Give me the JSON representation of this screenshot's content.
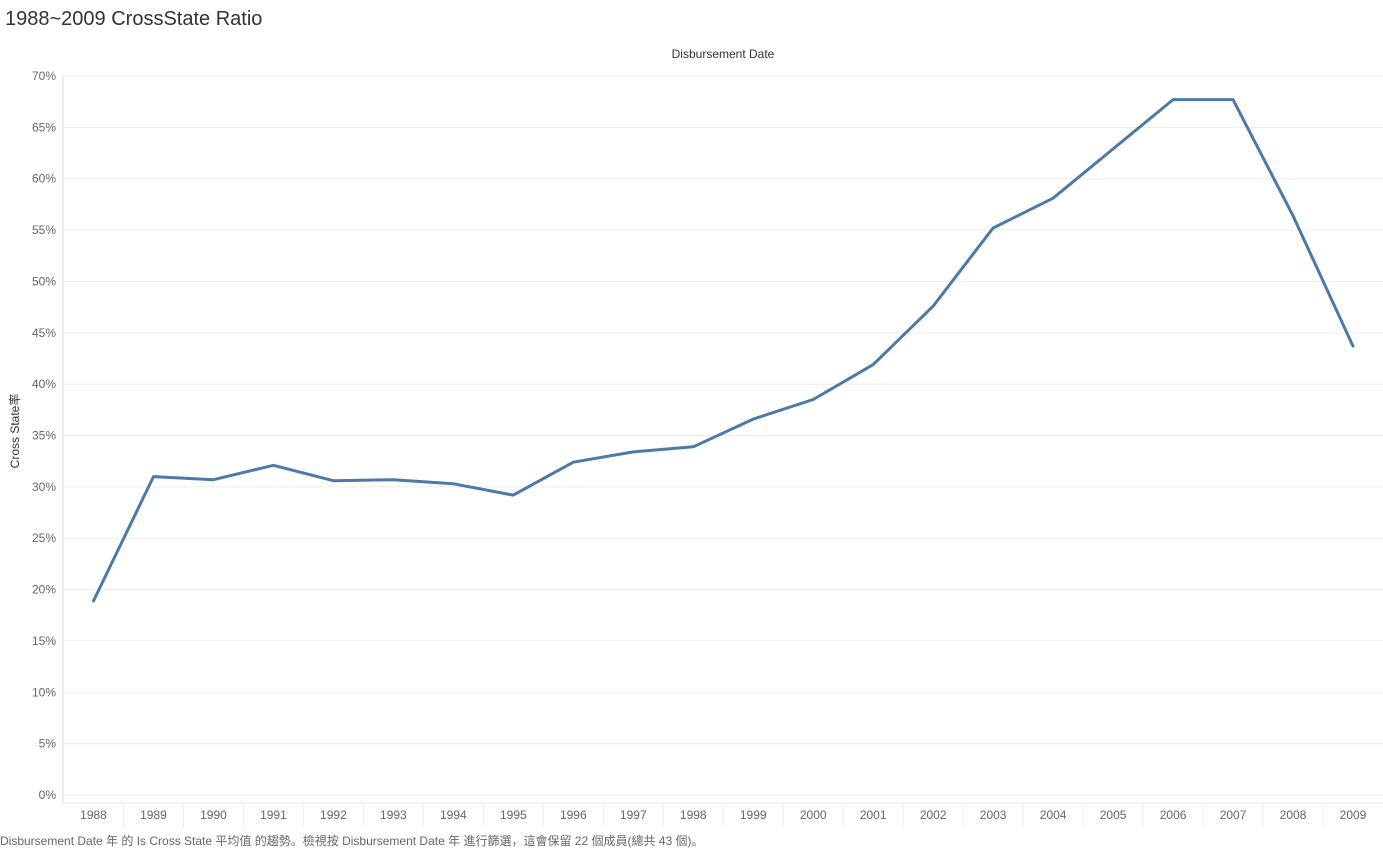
{
  "page": {
    "title": "1988~2009 CrossState Ratio",
    "caption": "Disbursement Date 年 的 Is Cross State 平均值 的趨勢。檢視按 Disbursement Date 年 進行篩選，這會保留 22 個成員(總共 43 個)。"
  },
  "colors": {
    "line": "#4e79a7",
    "grid": "#ececec",
    "axis_text": "#666666"
  },
  "chart_data": {
    "type": "line",
    "title": "1988~2009 CrossState Ratio",
    "xlabel": "Disbursement Date",
    "ylabel": "Cross State率",
    "x": [
      "1988",
      "1989",
      "1990",
      "1991",
      "1992",
      "1993",
      "1994",
      "1995",
      "1996",
      "1997",
      "1998",
      "1999",
      "2000",
      "2001",
      "2002",
      "2003",
      "2004",
      "2005",
      "2006",
      "2007",
      "2008",
      "2009"
    ],
    "values": [
      18.9,
      31.0,
      30.7,
      32.1,
      30.6,
      30.7,
      30.3,
      29.2,
      32.4,
      33.4,
      33.9,
      36.6,
      38.5,
      41.9,
      47.6,
      55.2,
      58.1,
      62.9,
      67.7,
      67.7,
      56.4,
      43.7
    ],
    "ylim": [
      0,
      70
    ],
    "yticks": [
      "0%",
      "5%",
      "10%",
      "15%",
      "20%",
      "25%",
      "30%",
      "35%",
      "40%",
      "45%",
      "50%",
      "55%",
      "60%",
      "65%",
      "70%"
    ],
    "ytick_values": [
      0,
      5,
      10,
      15,
      20,
      25,
      30,
      35,
      40,
      45,
      50,
      55,
      60,
      65,
      70
    ],
    "grid": true,
    "legend": "none"
  }
}
